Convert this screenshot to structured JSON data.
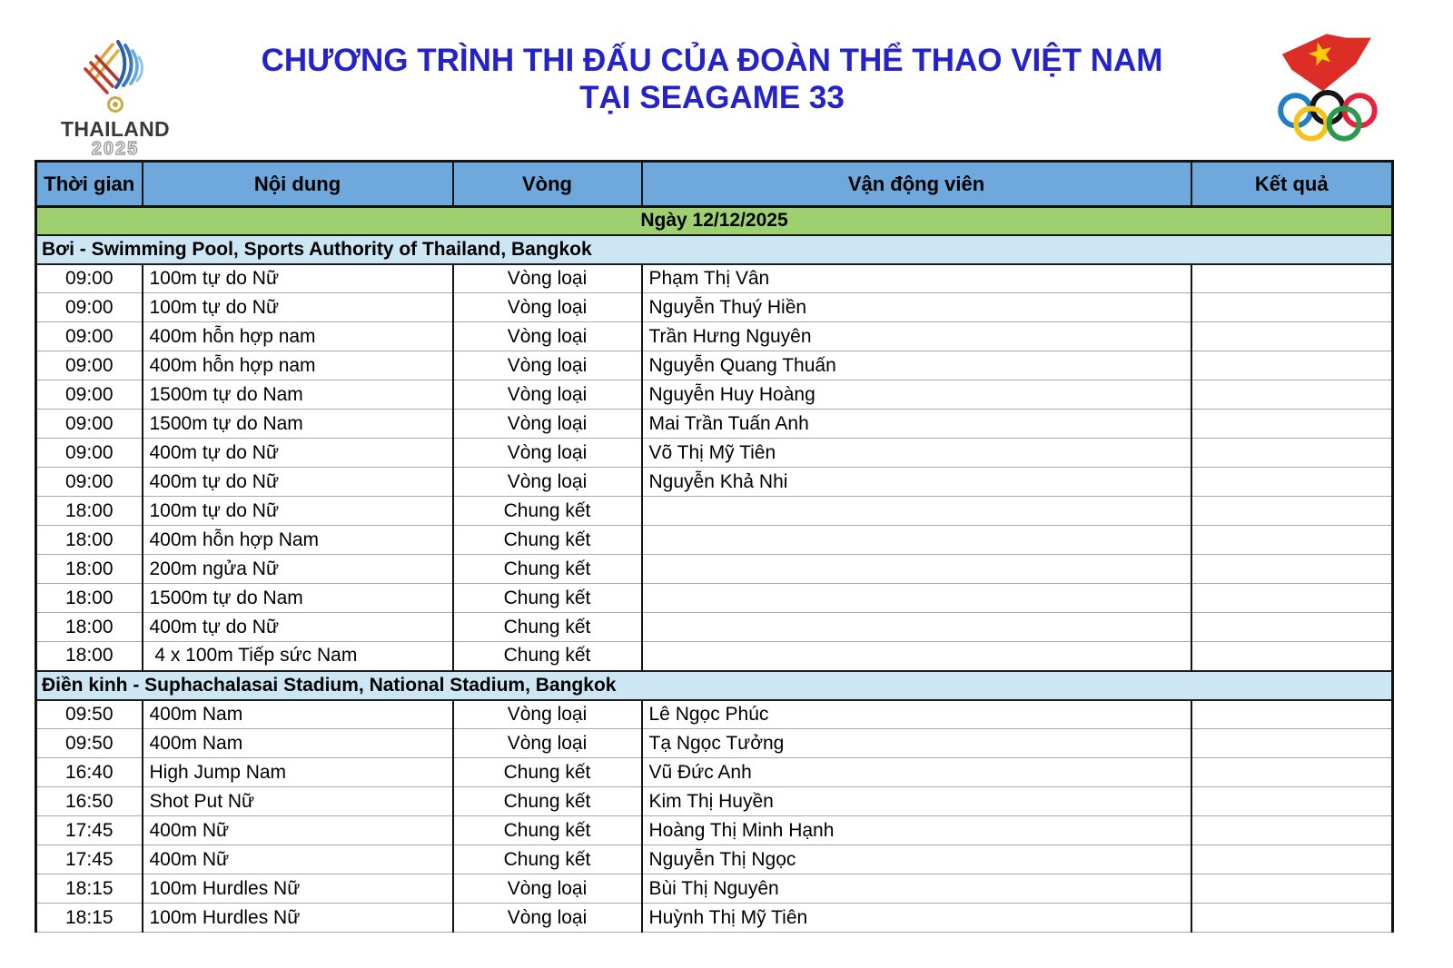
{
  "header": {
    "title_line1": "CHƯƠNG TRÌNH THI ĐẤU CỦA ĐOÀN THỂ THAO VIỆT NAM",
    "title_line2": "TẠI SEAGAME 33",
    "thailand_logo": {
      "name": "THAILAND",
      "year": "2025"
    },
    "vietnam_logo": "vietnam-olympic-committee-flag-and-rings"
  },
  "table": {
    "columns": [
      "Thời gian",
      "Nội dung",
      "Vòng",
      "Vận động viên",
      "Kết quả"
    ],
    "date_header": "Ngày 12/12/2025",
    "sections": [
      {
        "title": "Bơi - Swimming Pool, Sports Authority of Thailand, Bangkok",
        "rows": [
          {
            "time": "09:00",
            "event": "100m tự do Nữ",
            "round": "Vòng loại",
            "athlete": "Phạm Thị Vân",
            "result": ""
          },
          {
            "time": "09:00",
            "event": "100m tự do Nữ",
            "round": "Vòng loại",
            "athlete": "Nguyễn Thuý Hiền",
            "result": ""
          },
          {
            "time": "09:00",
            "event": "400m hỗn hợp nam",
            "round": "Vòng loại",
            "athlete": "Trần Hưng Nguyên",
            "result": ""
          },
          {
            "time": "09:00",
            "event": "400m hỗn hợp nam",
            "round": "Vòng loại",
            "athlete": "Nguyễn Quang Thuấn",
            "result": ""
          },
          {
            "time": "09:00",
            "event": "1500m tự do Nam",
            "round": "Vòng loại",
            "athlete": "Nguyễn Huy Hoàng",
            "result": ""
          },
          {
            "time": "09:00",
            "event": "1500m tự do Nam",
            "round": "Vòng loại",
            "athlete": "Mai Trần Tuấn Anh",
            "result": ""
          },
          {
            "time": "09:00",
            "event": "400m tự do Nữ",
            "round": "Vòng loại",
            "athlete": "Võ Thị Mỹ Tiên",
            "result": ""
          },
          {
            "time": "09:00",
            "event": "400m tự do Nữ",
            "round": "Vòng loại",
            "athlete": "Nguyễn Khả Nhi",
            "result": ""
          },
          {
            "time": "18:00",
            "event": "100m tự do Nữ",
            "round": "Chung kết",
            "athlete": "",
            "result": ""
          },
          {
            "time": "18:00",
            "event": "400m hỗn hợp Nam",
            "round": "Chung kết",
            "athlete": "",
            "result": ""
          },
          {
            "time": "18:00",
            "event": "200m ngửa Nữ",
            "round": "Chung kết",
            "athlete": "",
            "result": ""
          },
          {
            "time": "18:00",
            "event": "1500m tự do Nam",
            "round": "Chung kết",
            "athlete": "",
            "result": ""
          },
          {
            "time": "18:00",
            "event": "400m tự do Nữ",
            "round": "Chung kết",
            "athlete": "",
            "result": ""
          },
          {
            "time": "18:00",
            "event": " 4 x 100m Tiếp sức Nam",
            "round": "Chung kết",
            "athlete": "",
            "result": ""
          }
        ]
      },
      {
        "title": "Điền kinh - Suphachalasai Stadium, National Stadium, Bangkok",
        "rows": [
          {
            "time": "09:50",
            "event": "400m Nam",
            "round": "Vòng loại",
            "athlete": "Lê Ngọc Phúc",
            "result": ""
          },
          {
            "time": "09:50",
            "event": "400m Nam",
            "round": "Vòng loại",
            "athlete": "Tạ Ngọc Tưởng",
            "result": ""
          },
          {
            "time": "16:40",
            "event": "High Jump Nam",
            "round": "Chung kết",
            "athlete": "Vũ Đức Anh",
            "result": ""
          },
          {
            "time": "16:50",
            "event": "Shot Put Nữ",
            "round": "Chung kết",
            "athlete": "Kim Thị Huyền",
            "result": ""
          },
          {
            "time": "17:45",
            "event": "400m Nữ",
            "round": "Chung kết",
            "athlete": "Hoàng Thị Minh Hạnh",
            "result": ""
          },
          {
            "time": "17:45",
            "event": "400m Nữ",
            "round": "Chung kết",
            "athlete": "Nguyễn Thị Ngọc",
            "result": ""
          },
          {
            "time": "18:15",
            "event": "100m Hurdles Nữ",
            "round": "Vòng loại",
            "athlete": "Bùi Thị Nguyên",
            "result": ""
          },
          {
            "time": "18:15",
            "event": "100m Hurdles Nữ",
            "round": "Vòng loại",
            "athlete": "Huỳnh Thị Mỹ Tiên",
            "result": ""
          }
        ]
      }
    ]
  },
  "colors": {
    "header_blue": "#6FA8DC",
    "date_green": "#9ED06F",
    "section_blue": "#CDE6F4",
    "title_blue": "#2323C9"
  }
}
